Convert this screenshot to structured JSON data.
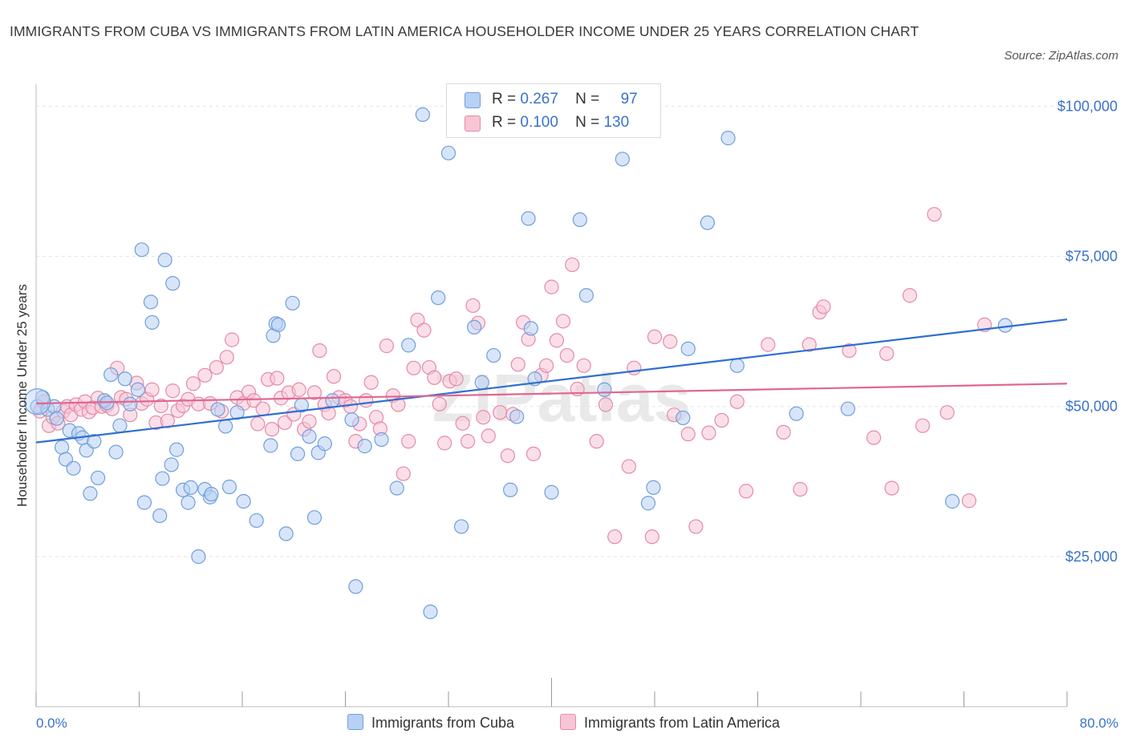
{
  "title": "IMMIGRANTS FROM CUBA VS IMMIGRANTS FROM LATIN AMERICA HOUSEHOLDER INCOME UNDER 25 YEARS CORRELATION CHART",
  "source": "Source: ZipAtlas.com",
  "watermark": "ZIPatlas",
  "legend": {
    "cuba": {
      "r_label": "R =",
      "r": "0.267",
      "n_label": "N =",
      "n": "97"
    },
    "latam": {
      "r_label": "R =",
      "r": "0.100",
      "n_label": "N =",
      "n": "130"
    }
  },
  "bottom_legend": {
    "cuba": "Immigrants from Cuba",
    "latam": "Immigrants from Latin America"
  },
  "x_axis": {
    "min_label": "0.0%",
    "max_label": "80.0%"
  },
  "colors": {
    "cuba_fill": "#b8d0f4",
    "cuba_stroke": "#6f9fdc",
    "cuba_line": "#2f6fd0",
    "latam_fill": "#f8c5d5",
    "latam_stroke": "#e58aa8",
    "latam_line": "#e06691",
    "tick_label": "#3a72c8"
  },
  "chart_data": {
    "type": "scatter",
    "title": "IMMIGRANTS FROM CUBA VS IMMIGRANTS FROM LATIN AMERICA HOUSEHOLDER INCOME UNDER 25 YEARS CORRELATION CHART",
    "xlabel": "",
    "ylabel": "Householder Income Under 25 years",
    "xlim": [
      0,
      80
    ],
    "ylim": [
      0,
      105000
    ],
    "y_ticks": [
      25000,
      50000,
      75000,
      100000
    ],
    "y_tick_labels": [
      "$25,000",
      "$50,000",
      "$75,000",
      "$100,000"
    ],
    "x_tick_labels": [
      "0.0%",
      "80.0%"
    ],
    "grid": true,
    "legend_position": "top-center",
    "series": [
      {
        "name": "Immigrants from Cuba",
        "R": 0.267,
        "N": 97,
        "trend": {
          "x": [
            0,
            80
          ],
          "y": [
            44000,
            64500
          ]
        },
        "points": [
          [
            0.1,
            50000
          ],
          [
            0.5,
            51500
          ],
          [
            0.9,
            49500
          ],
          [
            1.4,
            50000
          ],
          [
            1.6,
            48000
          ],
          [
            2.0,
            43200
          ],
          [
            2.3,
            41200
          ],
          [
            2.6,
            46000
          ],
          [
            2.9,
            39700
          ],
          [
            3.3,
            45500
          ],
          [
            3.6,
            44800
          ],
          [
            3.9,
            42700
          ],
          [
            4.2,
            35500
          ],
          [
            4.5,
            44200
          ],
          [
            4.8,
            38100
          ],
          [
            5.3,
            51000
          ],
          [
            5.5,
            50600
          ],
          [
            5.8,
            55300
          ],
          [
            6.2,
            42400
          ],
          [
            6.5,
            46800
          ],
          [
            6.9,
            54600
          ],
          [
            7.3,
            50400
          ],
          [
            7.9,
            52800
          ],
          [
            8.2,
            76100
          ],
          [
            8.4,
            34000
          ],
          [
            8.9,
            67400
          ],
          [
            9.0,
            64000
          ],
          [
            9.6,
            31800
          ],
          [
            9.8,
            38000
          ],
          [
            10.0,
            74400
          ],
          [
            10.5,
            40300
          ],
          [
            10.6,
            70500
          ],
          [
            10.9,
            42800
          ],
          [
            11.4,
            36100
          ],
          [
            11.8,
            34000
          ],
          [
            12.0,
            36500
          ],
          [
            12.6,
            25000
          ],
          [
            13.1,
            36200
          ],
          [
            13.5,
            34900
          ],
          [
            13.6,
            35400
          ],
          [
            14.1,
            49500
          ],
          [
            14.7,
            46700
          ],
          [
            15.0,
            36600
          ],
          [
            15.6,
            49000
          ],
          [
            16.1,
            34200
          ],
          [
            17.1,
            31000
          ],
          [
            18.2,
            43500
          ],
          [
            18.4,
            61800
          ],
          [
            18.6,
            63800
          ],
          [
            18.8,
            63600
          ],
          [
            19.4,
            28800
          ],
          [
            19.9,
            67200
          ],
          [
            20.3,
            42100
          ],
          [
            20.6,
            50200
          ],
          [
            21.2,
            45000
          ],
          [
            21.6,
            31500
          ],
          [
            21.9,
            42300
          ],
          [
            22.4,
            43800
          ],
          [
            23.0,
            51000
          ],
          [
            24.5,
            47800
          ],
          [
            24.8,
            20000
          ],
          [
            25.5,
            43400
          ],
          [
            26.8,
            44500
          ],
          [
            28.0,
            36400
          ],
          [
            28.9,
            60200
          ],
          [
            30.0,
            98600
          ],
          [
            30.6,
            15800
          ],
          [
            31.2,
            68100
          ],
          [
            32.0,
            92200
          ],
          [
            33.0,
            30000
          ],
          [
            34.0,
            63200
          ],
          [
            34.6,
            54000
          ],
          [
            35.5,
            58500
          ],
          [
            36.8,
            36100
          ],
          [
            37.3,
            48300
          ],
          [
            38.2,
            81300
          ],
          [
            38.4,
            63000
          ],
          [
            38.7,
            54600
          ],
          [
            40.0,
            35700
          ],
          [
            42.2,
            81100
          ],
          [
            42.7,
            68500
          ],
          [
            44.1,
            52800
          ],
          [
            45.5,
            91200
          ],
          [
            47.5,
            33900
          ],
          [
            47.9,
            36500
          ],
          [
            50.2,
            48100
          ],
          [
            50.6,
            59600
          ],
          [
            52.1,
            80600
          ],
          [
            53.7,
            94700
          ],
          [
            54.4,
            56800
          ],
          [
            59.0,
            48800
          ],
          [
            63.0,
            49600
          ],
          [
            71.1,
            34200
          ],
          [
            75.2,
            63500
          ]
        ]
      },
      {
        "name": "Immigrants from Latin America",
        "R": 0.1,
        "N": 130,
        "trend": {
          "x": [
            0,
            80
          ],
          "y": [
            50500,
            53800
          ]
        },
        "points": [
          [
            0.3,
            49200
          ],
          [
            0.6,
            50800
          ],
          [
            1.0,
            46800
          ],
          [
            1.3,
            48200
          ],
          [
            1.7,
            47200
          ],
          [
            2.1,
            49200
          ],
          [
            2.4,
            50000
          ],
          [
            2.7,
            48600
          ],
          [
            3.1,
            50300
          ],
          [
            3.5,
            49500
          ],
          [
            3.8,
            50800
          ],
          [
            4.1,
            49100
          ],
          [
            4.4,
            49800
          ],
          [
            4.8,
            51400
          ],
          [
            5.1,
            50000
          ],
          [
            5.5,
            50200
          ],
          [
            5.9,
            49600
          ],
          [
            6.3,
            56400
          ],
          [
            6.6,
            51500
          ],
          [
            7.0,
            51200
          ],
          [
            7.3,
            48600
          ],
          [
            7.8,
            53900
          ],
          [
            8.2,
            50500
          ],
          [
            8.6,
            51200
          ],
          [
            9.0,
            52800
          ],
          [
            9.3,
            47300
          ],
          [
            9.7,
            50100
          ],
          [
            10.2,
            47600
          ],
          [
            10.6,
            52600
          ],
          [
            11.0,
            49300
          ],
          [
            11.4,
            50100
          ],
          [
            11.8,
            51200
          ],
          [
            12.2,
            53800
          ],
          [
            12.6,
            50400
          ],
          [
            13.1,
            55200
          ],
          [
            13.5,
            50500
          ],
          [
            14.0,
            56500
          ],
          [
            14.4,
            49200
          ],
          [
            14.8,
            58200
          ],
          [
            15.2,
            61100
          ],
          [
            15.6,
            51500
          ],
          [
            16.1,
            50500
          ],
          [
            16.5,
            52400
          ],
          [
            16.9,
            51000
          ],
          [
            17.2,
            47100
          ],
          [
            17.6,
            49600
          ],
          [
            18.0,
            54500
          ],
          [
            18.3,
            46200
          ],
          [
            18.7,
            54700
          ],
          [
            19.0,
            51400
          ],
          [
            19.3,
            47300
          ],
          [
            19.6,
            52300
          ],
          [
            20.0,
            48700
          ],
          [
            20.4,
            52800
          ],
          [
            20.8,
            46200
          ],
          [
            21.2,
            47500
          ],
          [
            21.6,
            52300
          ],
          [
            22.0,
            59300
          ],
          [
            22.4,
            50300
          ],
          [
            22.7,
            48900
          ],
          [
            23.1,
            55000
          ],
          [
            23.5,
            51500
          ],
          [
            24.0,
            51000
          ],
          [
            24.4,
            50000
          ],
          [
            24.8,
            44200
          ],
          [
            25.1,
            47100
          ],
          [
            25.6,
            51000
          ],
          [
            26.0,
            54000
          ],
          [
            26.4,
            48200
          ],
          [
            26.7,
            46300
          ],
          [
            27.2,
            60100
          ],
          [
            27.7,
            51800
          ],
          [
            28.1,
            50300
          ],
          [
            28.5,
            38800
          ],
          [
            28.9,
            44200
          ],
          [
            29.3,
            56400
          ],
          [
            29.6,
            64400
          ],
          [
            30.1,
            62700
          ],
          [
            30.5,
            56500
          ],
          [
            30.9,
            54800
          ],
          [
            31.3,
            50400
          ],
          [
            31.7,
            43900
          ],
          [
            32.1,
            54200
          ],
          [
            32.6,
            54600
          ],
          [
            33.1,
            47200
          ],
          [
            33.5,
            44200
          ],
          [
            33.9,
            66800
          ],
          [
            34.3,
            63900
          ],
          [
            34.7,
            48200
          ],
          [
            35.1,
            45100
          ],
          [
            36.0,
            49000
          ],
          [
            36.6,
            41800
          ],
          [
            37.0,
            48700
          ],
          [
            37.4,
            57000
          ],
          [
            37.8,
            64000
          ],
          [
            38.2,
            61200
          ],
          [
            38.6,
            42100
          ],
          [
            39.2,
            55200
          ],
          [
            39.6,
            56800
          ],
          [
            40.0,
            69900
          ],
          [
            40.4,
            61000
          ],
          [
            40.9,
            64200
          ],
          [
            41.2,
            58500
          ],
          [
            41.6,
            73600
          ],
          [
            42.0,
            52900
          ],
          [
            42.5,
            56800
          ],
          [
            43.5,
            44200
          ],
          [
            44.2,
            50300
          ],
          [
            44.9,
            28300
          ],
          [
            46.0,
            40000
          ],
          [
            46.4,
            56400
          ],
          [
            47.8,
            28300
          ],
          [
            48.0,
            61600
          ],
          [
            49.2,
            60800
          ],
          [
            49.5,
            48600
          ],
          [
            50.6,
            45400
          ],
          [
            51.2,
            30000
          ],
          [
            52.2,
            45600
          ],
          [
            53.2,
            47700
          ],
          [
            54.4,
            50800
          ],
          [
            55.1,
            35900
          ],
          [
            56.8,
            60300
          ],
          [
            58.0,
            45700
          ],
          [
            59.3,
            36200
          ],
          [
            60.0,
            60300
          ],
          [
            60.8,
            65700
          ],
          [
            61.1,
            66600
          ],
          [
            63.1,
            59300
          ],
          [
            65.0,
            44800
          ],
          [
            66.0,
            58800
          ],
          [
            66.4,
            36400
          ],
          [
            67.8,
            68500
          ],
          [
            68.8,
            46800
          ],
          [
            69.7,
            82000
          ],
          [
            70.7,
            49000
          ],
          [
            72.4,
            34300
          ],
          [
            73.6,
            63600
          ]
        ]
      }
    ]
  }
}
